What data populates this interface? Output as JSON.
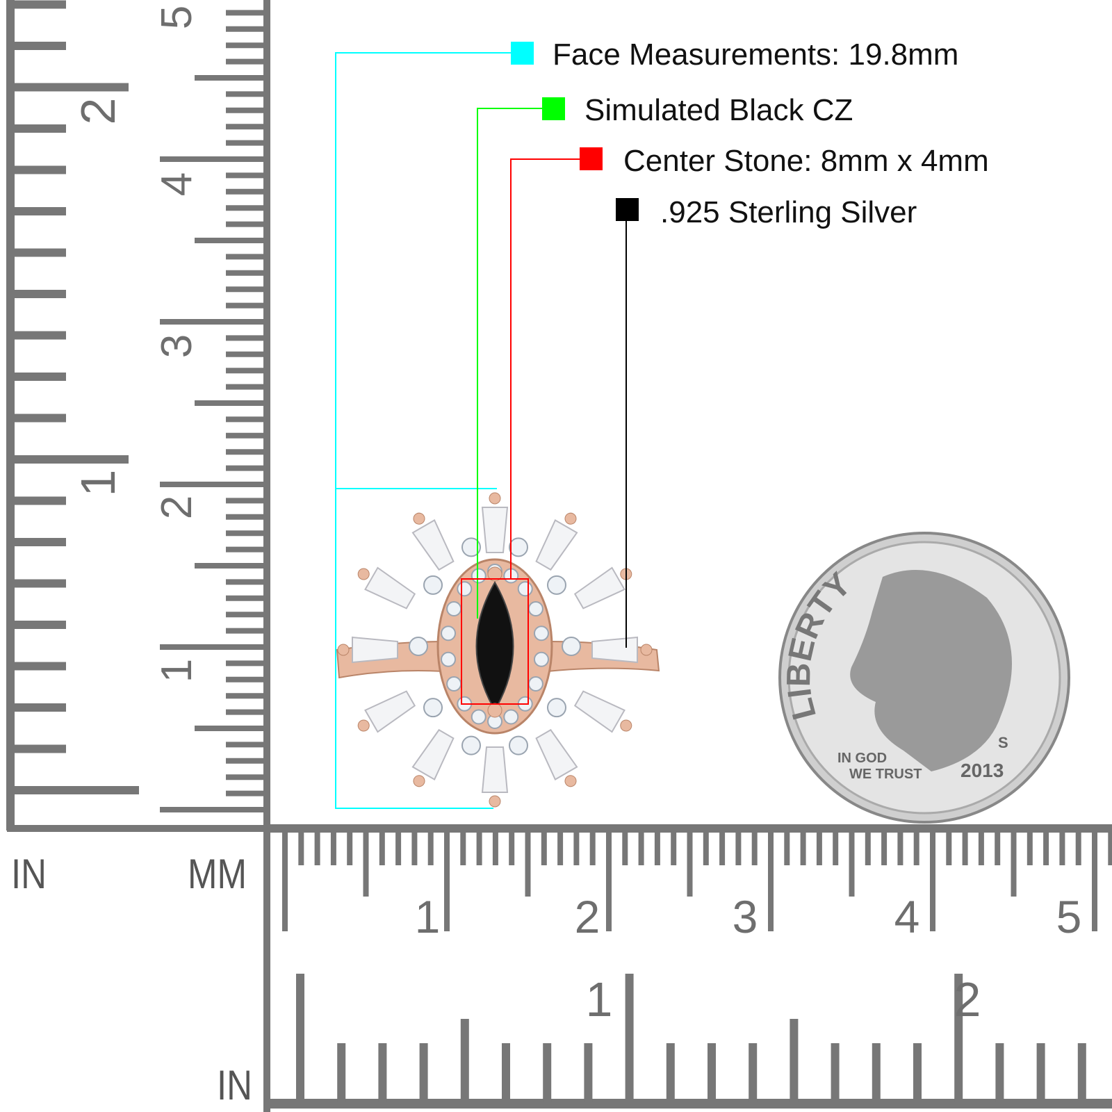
{
  "annotations": [
    {
      "text": "Face Measurements: 19.8mm",
      "color": "#00ffff"
    },
    {
      "text": "Simulated Black CZ",
      "color": "#00ff00"
    },
    {
      "text": "Center Stone: 8mm x 4mm",
      "color": "#ff0000"
    },
    {
      "text": ".925 Sterling Silver",
      "color": "#000000"
    }
  ],
  "rulers": {
    "in_label_left": "IN",
    "mm_label": "MM",
    "in_label_bottom": "IN",
    "vertical_inch_labels": [
      "2",
      "1"
    ],
    "vertical_cm_labels": [
      "5",
      "4",
      "3",
      "2",
      "1"
    ],
    "horizontal_cm_labels": [
      "1",
      "2",
      "3",
      "4",
      "5"
    ],
    "horizontal_inch_labels": [
      "1",
      "2"
    ],
    "color": "#777777"
  },
  "coin": {
    "liberty": "LIBERTY",
    "motto": "IN GOD WE TRUST",
    "year": "2013",
    "mint_mark": "S"
  },
  "ring": {
    "metal_color": "#e8b9a0",
    "center_stone_color": "#111111"
  }
}
